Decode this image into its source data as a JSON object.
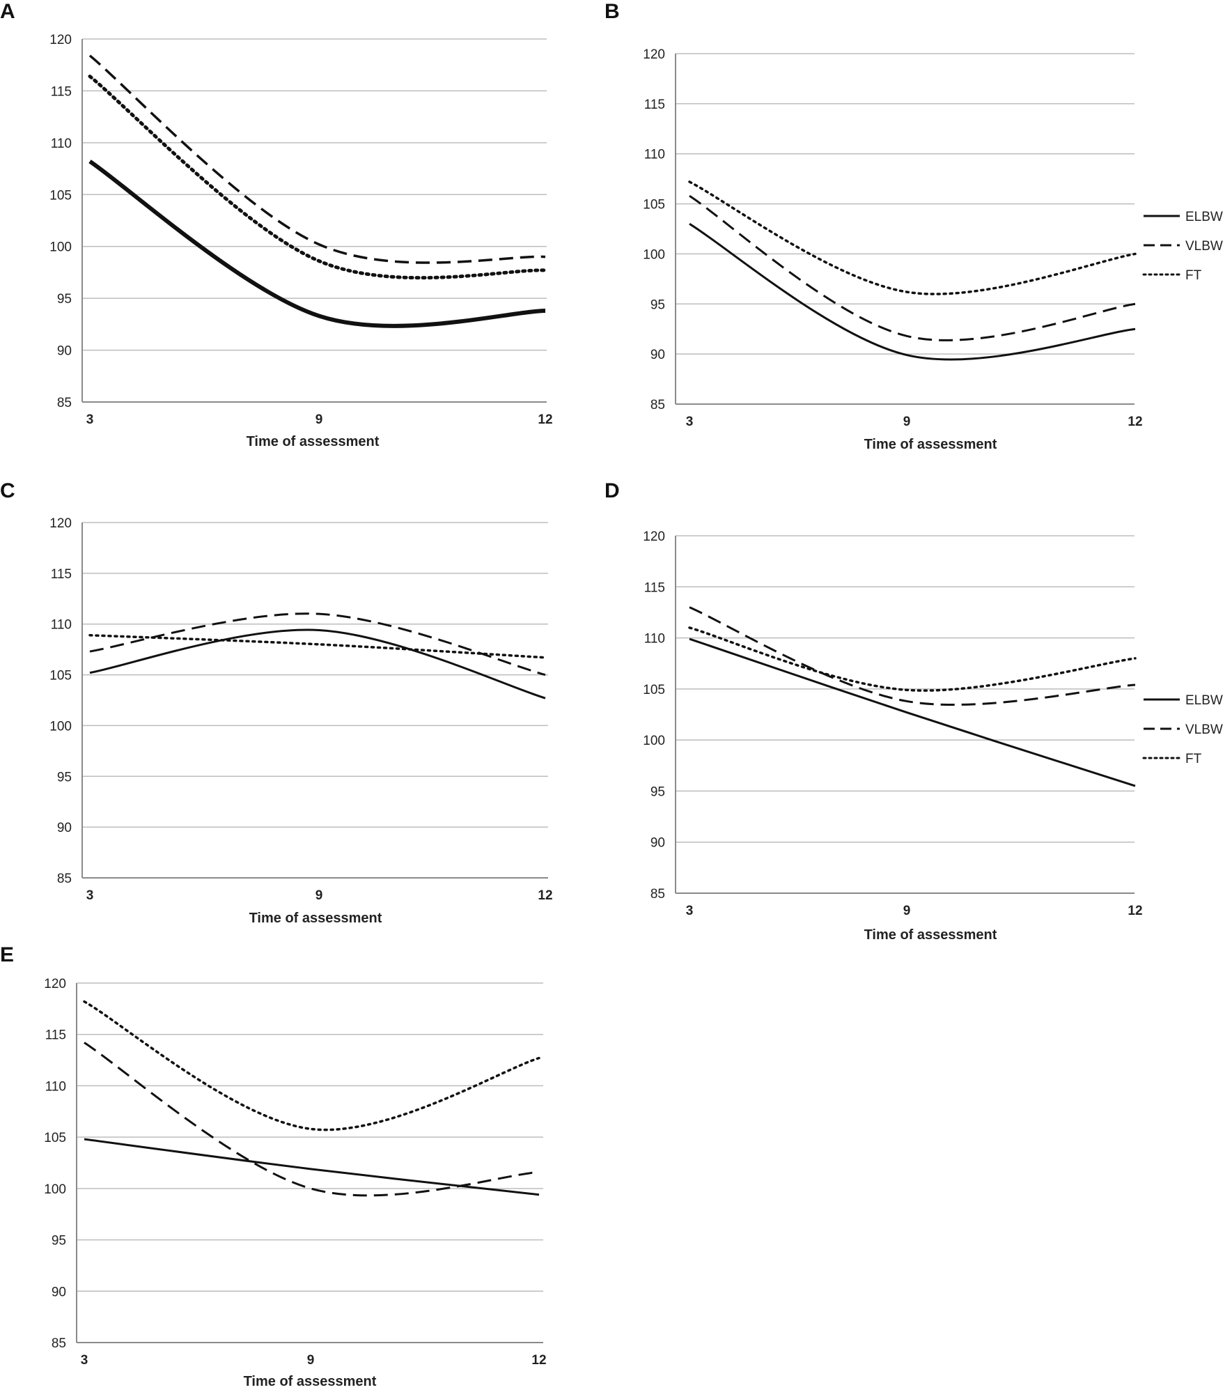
{
  "figure": {
    "xlabel": "Time of assessment",
    "legend": [
      {
        "name": "ELBW",
        "style": "solid"
      },
      {
        "name": "VLBW",
        "style": "dashed"
      },
      {
        "name": "FT",
        "style": "dotted"
      }
    ],
    "line_color": "#111111",
    "grid_color": "#bdbdbd"
  },
  "chart_data": [
    {
      "panel": "A",
      "type": "line",
      "xlabel": "Time of assessment",
      "categories": [
        "3",
        "9",
        "12"
      ],
      "ylim": [
        85,
        120
      ],
      "yticks": [
        85,
        90,
        95,
        100,
        105,
        110,
        115,
        120
      ],
      "legend": false,
      "series": [
        {
          "name": "ELBW",
          "style": "solid",
          "x": [
            3,
            9,
            12
          ],
          "values": [
            108.2,
            93.3,
            93.8
          ]
        },
        {
          "name": "VLBW",
          "style": "dashed",
          "x": [
            3,
            9,
            12
          ],
          "values": [
            118.4,
            100.2,
            99.0
          ]
        },
        {
          "name": "FT",
          "style": "dotted",
          "x": [
            3,
            9,
            12
          ],
          "values": [
            116.4,
            98.6,
            97.7
          ]
        }
      ]
    },
    {
      "panel": "B",
      "type": "line",
      "xlabel": "Time of assessment",
      "categories": [
        "3",
        "9",
        "12"
      ],
      "ylim": [
        85,
        120
      ],
      "yticks": [
        85,
        90,
        95,
        100,
        105,
        110,
        115,
        120
      ],
      "legend": true,
      "series": [
        {
          "name": "ELBW",
          "style": "solid",
          "x": [
            3,
            9,
            12
          ],
          "values": [
            103.0,
            89.9,
            92.5
          ]
        },
        {
          "name": "VLBW",
          "style": "dashed",
          "x": [
            3,
            9,
            12
          ],
          "values": [
            105.8,
            91.8,
            95.0
          ]
        },
        {
          "name": "FT",
          "style": "dotted",
          "x": [
            3,
            9,
            12
          ],
          "values": [
            107.2,
            96.2,
            100.0
          ]
        }
      ]
    },
    {
      "panel": "C",
      "type": "line",
      "xlabel": "Time of assessment",
      "categories": [
        "3",
        "9",
        "12"
      ],
      "ylim": [
        85,
        120
      ],
      "yticks": [
        85,
        90,
        95,
        100,
        105,
        110,
        115,
        120
      ],
      "legend": false,
      "series": [
        {
          "name": "ELBW",
          "style": "solid",
          "x": [
            3,
            9,
            12
          ],
          "values": [
            105.2,
            109.4,
            102.7
          ]
        },
        {
          "name": "VLBW",
          "style": "dashed",
          "x": [
            3,
            9,
            12
          ],
          "values": [
            107.3,
            111.0,
            105.0
          ]
        },
        {
          "name": "FT",
          "style": "dotted",
          "x": [
            3,
            9,
            12
          ],
          "values": [
            108.9,
            108.0,
            106.7
          ]
        }
      ]
    },
    {
      "panel": "D",
      "type": "line",
      "xlabel": "Time of assessment",
      "categories": [
        "3",
        "9",
        "12"
      ],
      "ylim": [
        85,
        120
      ],
      "yticks": [
        85,
        90,
        95,
        100,
        105,
        110,
        115,
        120
      ],
      "legend": true,
      "series": [
        {
          "name": "ELBW",
          "style": "solid",
          "x": [
            3,
            9,
            12
          ],
          "values": [
            109.9,
            102.7,
            95.5
          ]
        },
        {
          "name": "VLBW",
          "style": "dashed",
          "x": [
            3,
            9,
            12
          ],
          "values": [
            113.0,
            103.8,
            105.4
          ]
        },
        {
          "name": "FT",
          "style": "dotted",
          "x": [
            3,
            9,
            12
          ],
          "values": [
            111.0,
            104.9,
            108.0
          ]
        }
      ]
    },
    {
      "panel": "E",
      "type": "line",
      "xlabel": "Time of assessment",
      "categories": [
        "3",
        "9",
        "12"
      ],
      "ylim": [
        85,
        120
      ],
      "yticks": [
        85,
        90,
        95,
        100,
        105,
        110,
        115,
        120
      ],
      "legend": false,
      "series": [
        {
          "name": "ELBW",
          "style": "solid",
          "x": [
            3,
            9,
            12
          ],
          "values": [
            104.8,
            101.9,
            99.4
          ]
        },
        {
          "name": "VLBW",
          "style": "dashed",
          "x": [
            3,
            9,
            12
          ],
          "values": [
            114.2,
            100.0,
            101.6
          ]
        },
        {
          "name": "FT",
          "style": "dotted",
          "x": [
            3,
            9,
            12
          ],
          "values": [
            118.2,
            105.8,
            112.7
          ]
        }
      ]
    }
  ]
}
